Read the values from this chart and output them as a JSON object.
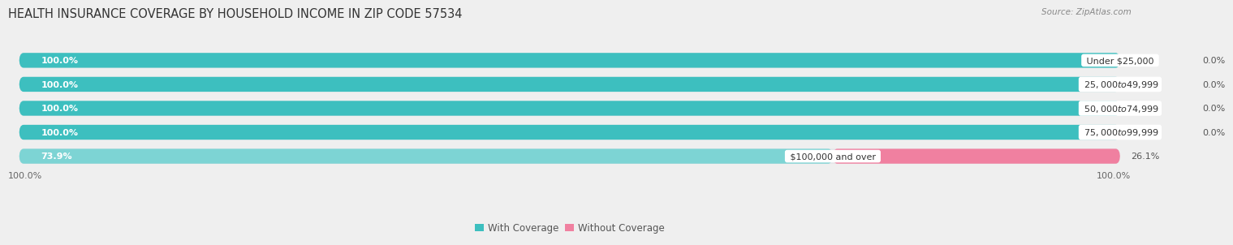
{
  "title": "HEALTH INSURANCE COVERAGE BY HOUSEHOLD INCOME IN ZIP CODE 57534",
  "source": "Source: ZipAtlas.com",
  "categories": [
    "Under $25,000",
    "$25,000 to $49,999",
    "$50,000 to $74,999",
    "$75,000 to $99,999",
    "$100,000 and over"
  ],
  "with_coverage": [
    100.0,
    100.0,
    100.0,
    100.0,
    73.9
  ],
  "without_coverage": [
    0.0,
    0.0,
    0.0,
    0.0,
    26.1
  ],
  "color_with": "#3DBFBF",
  "color_without": "#F080A0",
  "color_with_light": "#7DD4D4",
  "background_color": "#EFEFEF",
  "bar_bg_color": "#E2E2E6",
  "bar_height": 0.62,
  "title_fontsize": 10.5,
  "label_fontsize": 8.0,
  "pct_fontsize": 8.0,
  "tick_fontsize": 8.0,
  "legend_fontsize": 8.5,
  "source_fontsize": 7.5
}
